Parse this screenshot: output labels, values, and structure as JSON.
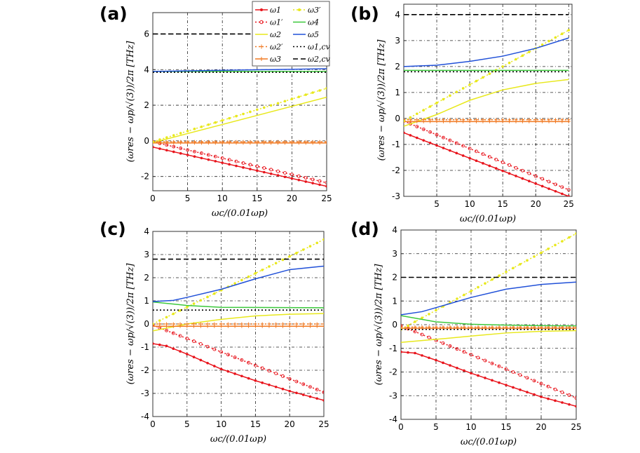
{
  "figure": {
    "legend": [
      {
        "label": "ω1",
        "color": "#e8141c",
        "style": "solid",
        "marker": "dot"
      },
      {
        "label": "ω1′",
        "color": "#e8141c",
        "style": "dotted",
        "marker": "circle"
      },
      {
        "label": "ω2",
        "color": "#e8e81c",
        "style": "solid",
        "marker": "none"
      },
      {
        "label": "ω2′",
        "color": "#f07820",
        "style": "dotted",
        "marker": "plus"
      },
      {
        "label": "ω3",
        "color": "#f07820",
        "style": "solid",
        "marker": "plus"
      },
      {
        "label": "ω3′",
        "color": "#e8e81c",
        "style": "dotted",
        "marker": "dot"
      },
      {
        "label": "ω4",
        "color": "#3cc83c",
        "style": "solid",
        "marker": "none"
      },
      {
        "label": "ω5",
        "color": "#2050d8",
        "style": "solid",
        "marker": "none"
      },
      {
        "label": "ω1,cv",
        "color": "#000000",
        "style": "dotted",
        "marker": "none"
      },
      {
        "label": "ω2,cv",
        "color": "#000000",
        "style": "dashed",
        "marker": "none"
      }
    ]
  },
  "chart_data": [
    {
      "panel": "(a)",
      "type": "line",
      "xlabel": "ωc/(0.01ωp)",
      "ylabel": "(ωres − ωp/√(3))/2π [THz]",
      "xlim": [
        0,
        25
      ],
      "ylim": [
        -2.8,
        7.2
      ],
      "xticks": [
        0,
        5,
        10,
        15,
        20,
        25
      ],
      "yticks": [
        -2,
        0,
        2,
        4,
        6
      ],
      "series": [
        {
          "name": "ω1",
          "x": [
            0,
            25
          ],
          "y": [
            -0.35,
            -2.55
          ]
        },
        {
          "name": "ω1′",
          "x": [
            0,
            25
          ],
          "y": [
            -0.05,
            -2.35
          ]
        },
        {
          "name": "ω2",
          "x": [
            0,
            25
          ],
          "y": [
            -0.1,
            2.45
          ]
        },
        {
          "name": "ω2′",
          "x": [
            0,
            25
          ],
          "y": [
            -0.05,
            -0.05
          ]
        },
        {
          "name": "ω3",
          "x": [
            0,
            25
          ],
          "y": [
            -0.12,
            -0.12
          ]
        },
        {
          "name": "ω3′",
          "x": [
            0,
            25
          ],
          "y": [
            -0.05,
            2.95
          ]
        },
        {
          "name": "ω4",
          "x": [
            0,
            25
          ],
          "y": [
            3.9,
            3.9
          ]
        },
        {
          "name": "ω5",
          "x": [
            0,
            25
          ],
          "y": [
            3.9,
            4.05
          ]
        },
        {
          "name": "ω1,cv",
          "x": [
            0,
            25
          ],
          "y": [
            3.85,
            3.85
          ]
        },
        {
          "name": "ω2,cv",
          "x": [
            0,
            25
          ],
          "y": [
            6.0,
            6.0
          ]
        }
      ]
    },
    {
      "panel": "(b)",
      "type": "line",
      "xlabel": "ωc/(0.01ωp)",
      "ylabel": "(ωres − ωp/√(3))/2π [THz]",
      "xlim": [
        0,
        25.5
      ],
      "ylim": [
        -3,
        4.4
      ],
      "xticks": [
        5,
        10,
        15,
        20,
        25
      ],
      "yticks": [
        -3,
        -2,
        -1,
        0,
        1,
        2,
        3,
        4
      ],
      "series": [
        {
          "name": "ω1",
          "x": [
            0,
            25
          ],
          "y": [
            -0.55,
            -3.0
          ]
        },
        {
          "name": "ω1′",
          "x": [
            0,
            25
          ],
          "y": [
            -0.1,
            -2.75
          ]
        },
        {
          "name": "ω2",
          "x": [
            0,
            5,
            10,
            15,
            20,
            25
          ],
          "y": [
            -0.3,
            0.15,
            0.7,
            1.1,
            1.35,
            1.5
          ]
        },
        {
          "name": "ω2′",
          "x": [
            0,
            25
          ],
          "y": [
            -0.05,
            -0.05
          ]
        },
        {
          "name": "ω3",
          "x": [
            0,
            25
          ],
          "y": [
            -0.12,
            -0.12
          ]
        },
        {
          "name": "ω3′",
          "x": [
            0,
            25
          ],
          "y": [
            -0.1,
            3.4
          ]
        },
        {
          "name": "ω4",
          "x": [
            0,
            25
          ],
          "y": [
            1.85,
            1.85
          ]
        },
        {
          "name": "ω5",
          "x": [
            0,
            5,
            10,
            15,
            20,
            25
          ],
          "y": [
            2.0,
            2.05,
            2.2,
            2.4,
            2.7,
            3.1
          ]
        },
        {
          "name": "ω1,cv",
          "x": [
            0,
            25
          ],
          "y": [
            1.8,
            1.8
          ]
        },
        {
          "name": "ω2,cv",
          "x": [
            0,
            25
          ],
          "y": [
            4.0,
            4.0
          ]
        }
      ]
    },
    {
      "panel": "(c)",
      "type": "line",
      "xlabel": "ωc/(0.01ωp)",
      "ylabel": "(ωres − ωp/√(3))/2π [THz]",
      "xlim": [
        0,
        25
      ],
      "ylim": [
        -4,
        4
      ],
      "xticks": [
        0,
        5,
        10,
        15,
        20,
        25
      ],
      "yticks": [
        -4,
        -3,
        -2,
        -1,
        0,
        1,
        2,
        3,
        4
      ],
      "series": [
        {
          "name": "ω1",
          "x": [
            0,
            2,
            5,
            10,
            15,
            20,
            25
          ],
          "y": [
            -0.85,
            -0.95,
            -1.3,
            -1.95,
            -2.45,
            -2.9,
            -3.3
          ]
        },
        {
          "name": "ω1′",
          "x": [
            0,
            25
          ],
          "y": [
            -0.05,
            -2.95
          ]
        },
        {
          "name": "ω2",
          "x": [
            0,
            5,
            10,
            15,
            20,
            25
          ],
          "y": [
            -0.3,
            0.0,
            0.2,
            0.35,
            0.42,
            0.45
          ]
        },
        {
          "name": "ω2′",
          "x": [
            0,
            25
          ],
          "y": [
            0.0,
            0.0
          ]
        },
        {
          "name": "ω3",
          "x": [
            0,
            25
          ],
          "y": [
            -0.1,
            -0.1
          ]
        },
        {
          "name": "ω3′",
          "x": [
            0,
            25
          ],
          "y": [
            0.0,
            3.65
          ]
        },
        {
          "name": "ω4",
          "x": [
            0,
            5,
            10,
            25
          ],
          "y": [
            0.95,
            0.8,
            0.72,
            0.7
          ]
        },
        {
          "name": "ω5",
          "x": [
            0,
            3,
            5,
            10,
            15,
            20,
            25
          ],
          "y": [
            0.97,
            1.02,
            1.15,
            1.5,
            1.95,
            2.35,
            2.5
          ]
        },
        {
          "name": "ω1,cv",
          "x": [
            0,
            25
          ],
          "y": [
            0.6,
            0.6
          ]
        },
        {
          "name": "ω2,cv",
          "x": [
            0,
            25
          ],
          "y": [
            2.8,
            2.8
          ]
        }
      ]
    },
    {
      "panel": "(d)",
      "type": "line",
      "xlabel": "ωc/(0.01ωp)",
      "ylabel": "(ωres − ωp/√(3))/2π [THz]",
      "xlim": [
        0,
        25
      ],
      "ylim": [
        -4,
        4
      ],
      "xticks": [
        0,
        5,
        10,
        15,
        20,
        25
      ],
      "yticks": [
        -4,
        -3,
        -2,
        -1,
        0,
        1,
        2,
        3,
        4
      ],
      "series": [
        {
          "name": "ω1",
          "x": [
            0,
            2,
            5,
            10,
            15,
            20,
            25
          ],
          "y": [
            -1.15,
            -1.2,
            -1.5,
            -2.05,
            -2.55,
            -3.05,
            -3.45
          ]
        },
        {
          "name": "ω1′",
          "x": [
            0,
            25
          ],
          "y": [
            -0.05,
            -3.1
          ]
        },
        {
          "name": "ω2",
          "x": [
            0,
            5,
            10,
            15,
            20,
            25
          ],
          "y": [
            -0.75,
            -0.62,
            -0.48,
            -0.35,
            -0.28,
            -0.25
          ]
        },
        {
          "name": "ω2′",
          "x": [
            0,
            25
          ],
          "y": [
            -0.1,
            -0.1
          ]
        },
        {
          "name": "ω3",
          "x": [
            0,
            25
          ],
          "y": [
            -0.15,
            -0.15
          ]
        },
        {
          "name": "ω3′",
          "x": [
            0,
            25
          ],
          "y": [
            -0.2,
            3.85
          ]
        },
        {
          "name": "ω4",
          "x": [
            0,
            5,
            10,
            15,
            20,
            25
          ],
          "y": [
            0.38,
            0.12,
            0.02,
            -0.02,
            -0.04,
            -0.05
          ]
        },
        {
          "name": "ω5",
          "x": [
            0,
            3,
            5,
            10,
            15,
            20,
            25
          ],
          "y": [
            0.42,
            0.55,
            0.72,
            1.15,
            1.5,
            1.7,
            1.8
          ]
        },
        {
          "name": "ω1,cv",
          "x": [
            0,
            25
          ],
          "y": [
            -0.2,
            -0.2
          ]
        },
        {
          "name": "ω2,cv",
          "x": [
            0,
            25
          ],
          "y": [
            2.0,
            2.0
          ]
        }
      ]
    }
  ]
}
